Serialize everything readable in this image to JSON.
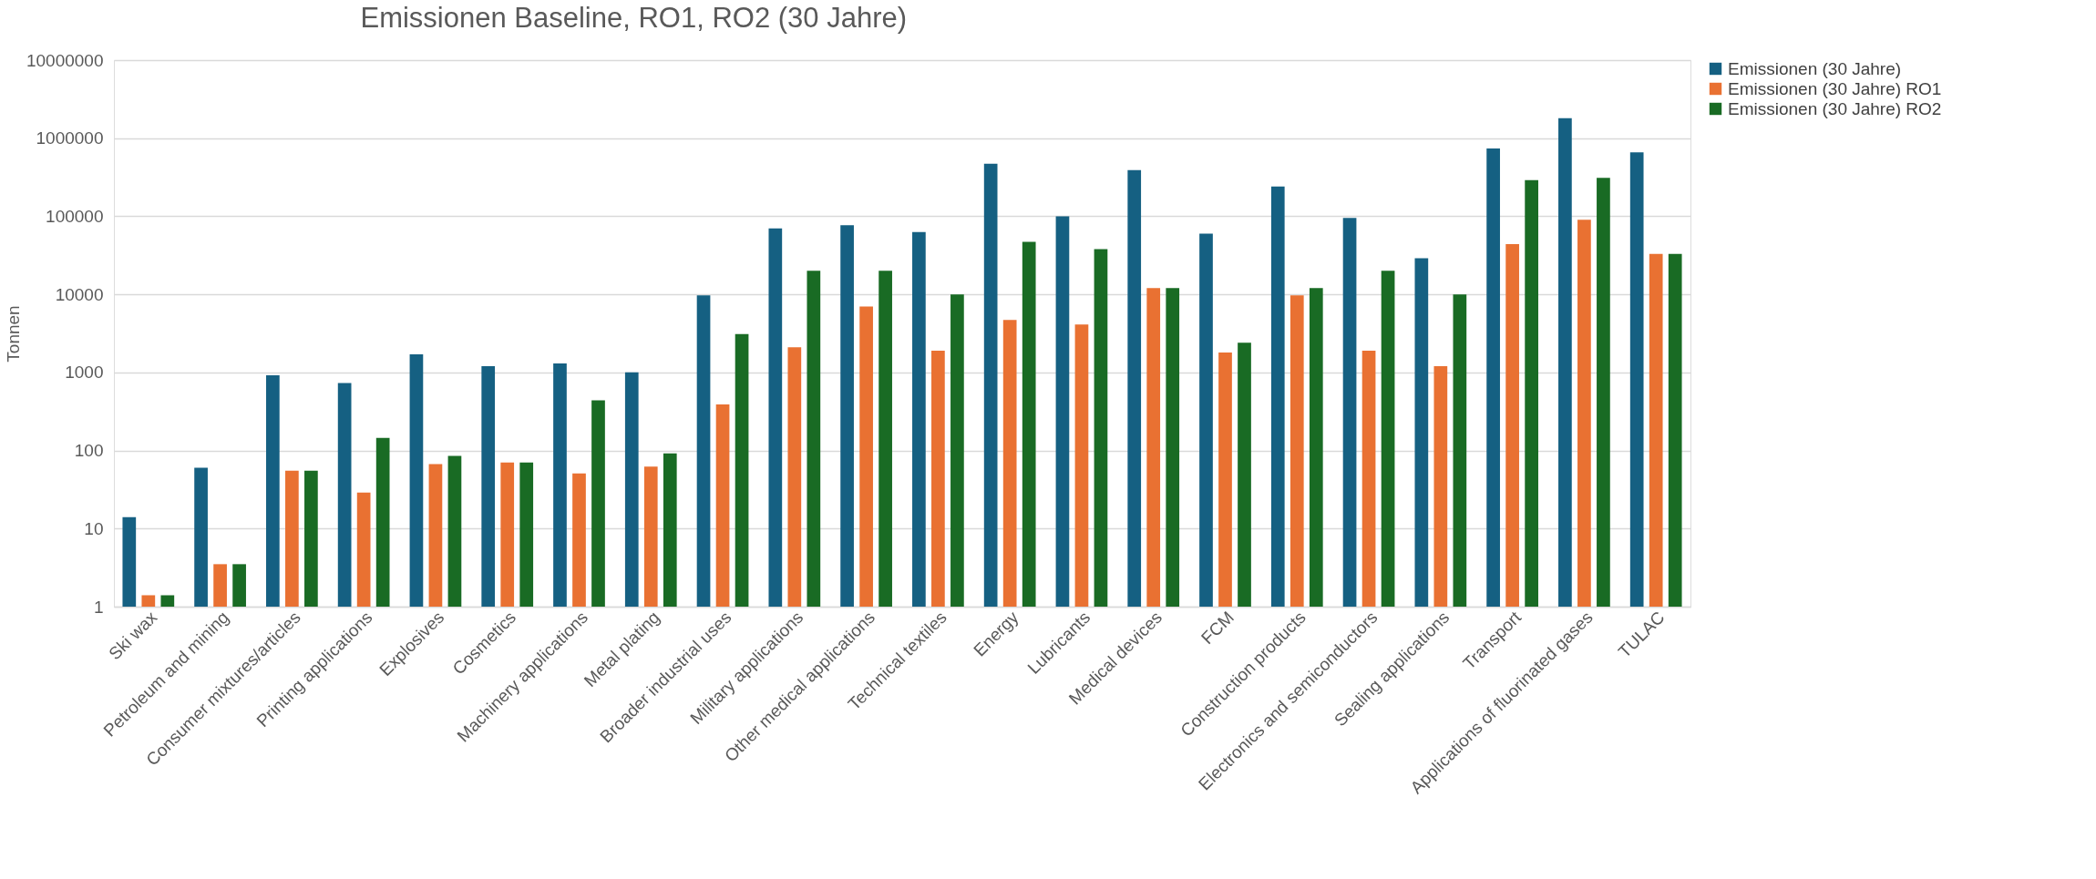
{
  "chart_data": {
    "type": "bar",
    "title": "Emissionen Baseline, RO1, RO2 (30 Jahre)",
    "ylabel": "Tonnen",
    "categories": [
      "Ski wax",
      "Petroleum and mining",
      "Consumer mixtures/articles",
      "Printing applications",
      "Explosives",
      "Cosmetics",
      "Machinery applications",
      "Metal plating",
      "Broader industrial uses",
      "Military applications",
      "Other medical applications",
      "Technical textiles",
      "Energy",
      "Lubricants",
      "Medical devices",
      "FCM",
      "Construction products",
      "Electronics and semiconductors",
      "Sealing applications",
      "Transport",
      "Applications of fluorinated gases",
      "TULAC"
    ],
    "series": [
      {
        "name": "Emissionen (30 Jahre)",
        "color": "#156082",
        "values": [
          14,
          60,
          920,
          730,
          1700,
          1200,
          1300,
          1000,
          9700,
          70000,
          77000,
          63000,
          470000,
          100000,
          390000,
          60000,
          240000,
          95000,
          29000,
          740000,
          1800000,
          660000
        ]
      },
      {
        "name": "Emissionen (30 Jahre) RO1",
        "color": "#e97132",
        "values": [
          1.4,
          3.5,
          55,
          29,
          67,
          70,
          51,
          62,
          390,
          2100,
          7000,
          1900,
          4700,
          4100,
          12000,
          1800,
          9700,
          1900,
          1200,
          44000,
          90000,
          33000
        ]
      },
      {
        "name": "Emissionen (30 Jahre) RO2",
        "color": "#196b24",
        "values": [
          1.4,
          3.5,
          55,
          145,
          85,
          70,
          440,
          92,
          3100,
          20000,
          20000,
          10000,
          47000,
          38000,
          12000,
          2400,
          12000,
          20000,
          10000,
          290000,
          310000,
          33000
        ]
      }
    ],
    "log": "y",
    "ylim": [
      1,
      10000000
    ],
    "yticks": [
      1,
      10,
      100,
      1000,
      10000,
      100000,
      1000000,
      10000000
    ],
    "grid": "y",
    "legend": "right"
  }
}
